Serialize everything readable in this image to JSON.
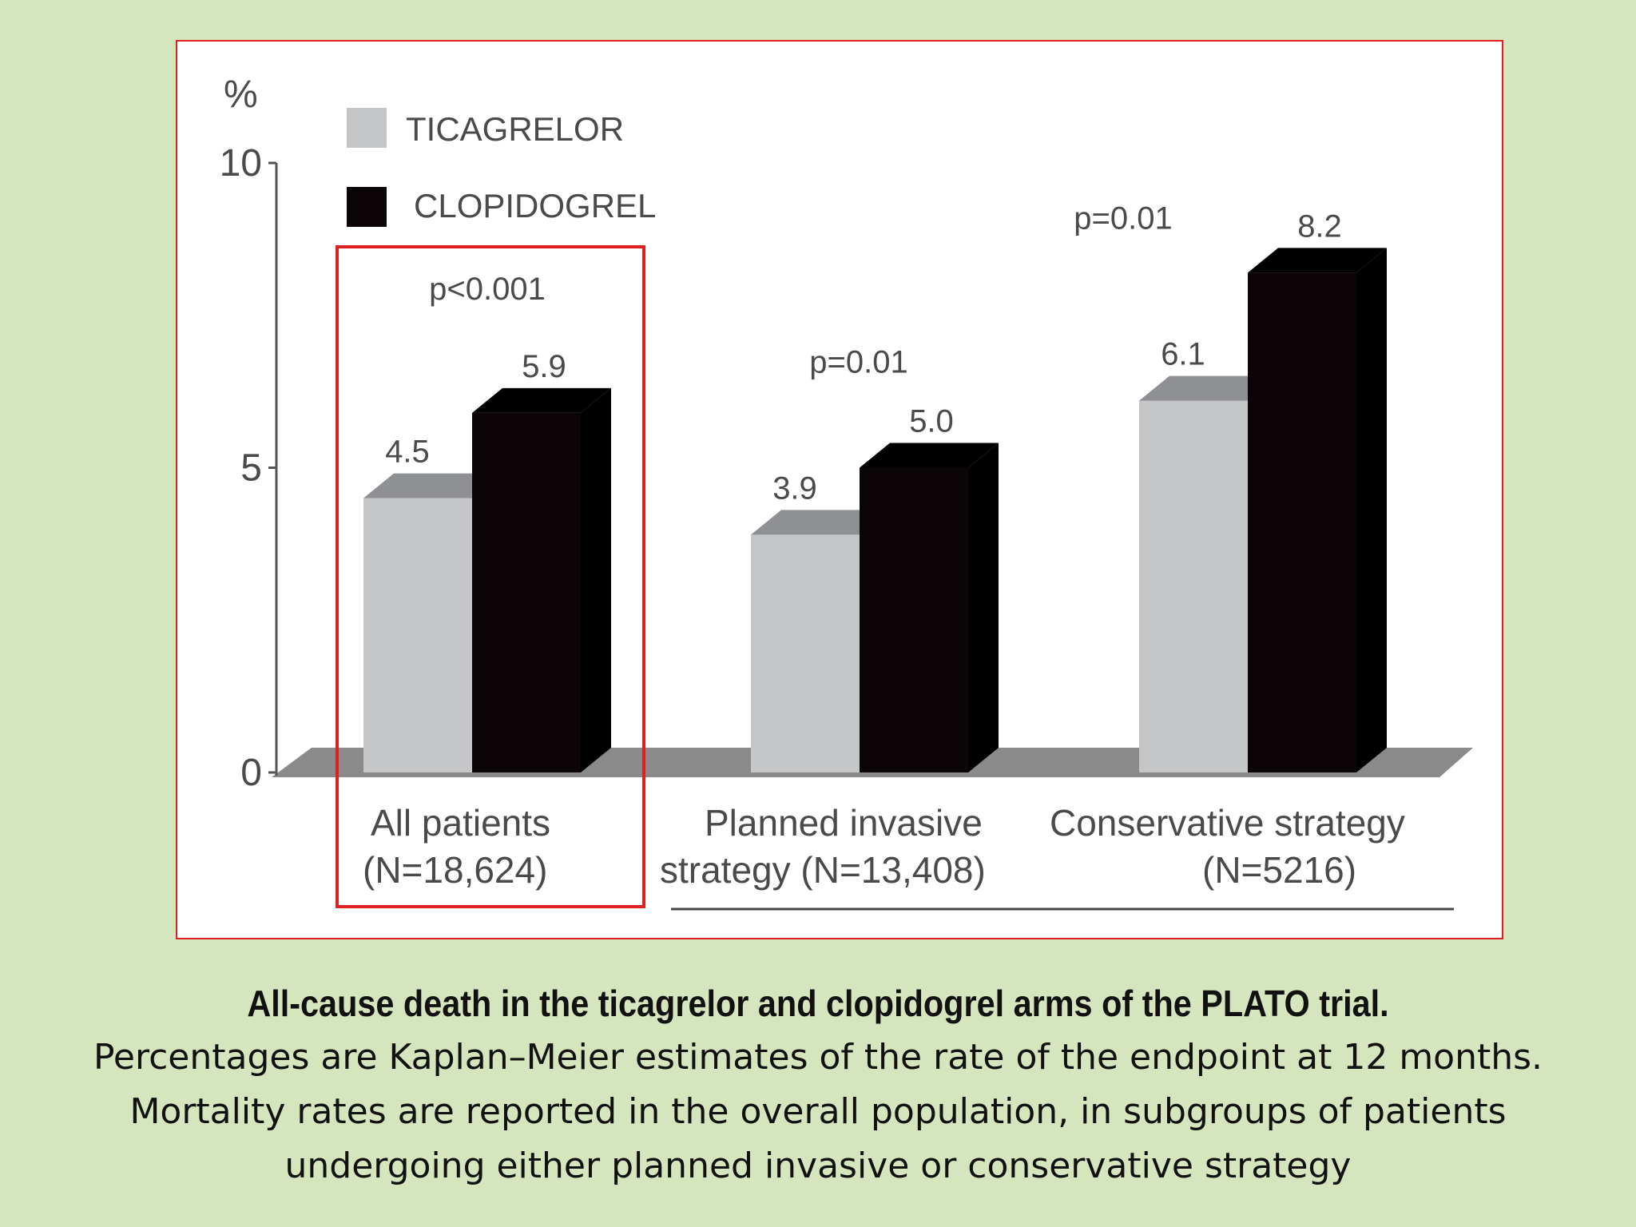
{
  "chart_data": {
    "type": "bar",
    "ylabel": "%",
    "ylim": [
      0,
      10
    ],
    "yticks": [
      "0",
      "5",
      "10"
    ],
    "categories": [
      [
        "All patients",
        "(N=18,624)"
      ],
      [
        "Planned invasive",
        "strategy (N=13,408)"
      ],
      [
        "Conservative strategy",
        "(N=5216)"
      ]
    ],
    "series": [
      {
        "name": "TICAGRELOR",
        "color": "#c5c6c8",
        "values": [
          4.5,
          3.9,
          6.1
        ],
        "labels": [
          "4.5",
          "3.9",
          "6.1"
        ]
      },
      {
        "name": "CLOPIDOGREL",
        "color": "#0b0507",
        "values": [
          5.9,
          5.0,
          8.2
        ],
        "labels": [
          "5.9",
          "5.0",
          "8.2"
        ]
      }
    ],
    "pvalues": [
      "p<0.001",
      "p=0.01",
      "p=0.01"
    ],
    "highlight_category": 0,
    "legend_position": "top-left",
    "grid": false
  },
  "caption": {
    "title": "All-cause death in the ticagrelor and clopidogrel arms of the PLATO trial.",
    "body": "Percentages are Kaplan–Meier estimates of the rate of the endpoint at 12 months. Mortality rates are reported in the overall population, in subgroups of patients undergoing either planned invasive or conservative strategy"
  },
  "colors": {
    "background": "#d5e5bd",
    "frame_border": "#e02020",
    "highlight_box": "#e02020",
    "floor": "#8a8a8a",
    "side_light": "#8f9093",
    "side_dark": "#000000"
  }
}
